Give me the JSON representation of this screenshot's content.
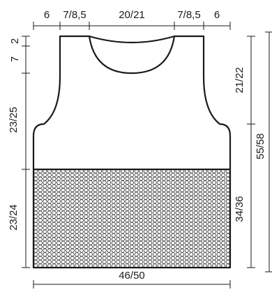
{
  "top_widths": {
    "shoulder_left": "6",
    "strap_left": "7/8,5",
    "neck": "20/21",
    "strap_right": "7/8,5",
    "shoulder_right": "6"
  },
  "left_heights": {
    "top_seg": "2",
    "neck_drop": "7",
    "armhole": "23/25",
    "lower": "23/24"
  },
  "right_heights": {
    "armhole": "21/22",
    "body": "34/36",
    "total": "55/58"
  },
  "bottom_width": "46/50",
  "pattern": {
    "rows": 26,
    "cols": 43
  },
  "colors": {
    "line": "#1a1a1a",
    "background": "#ffffff"
  }
}
